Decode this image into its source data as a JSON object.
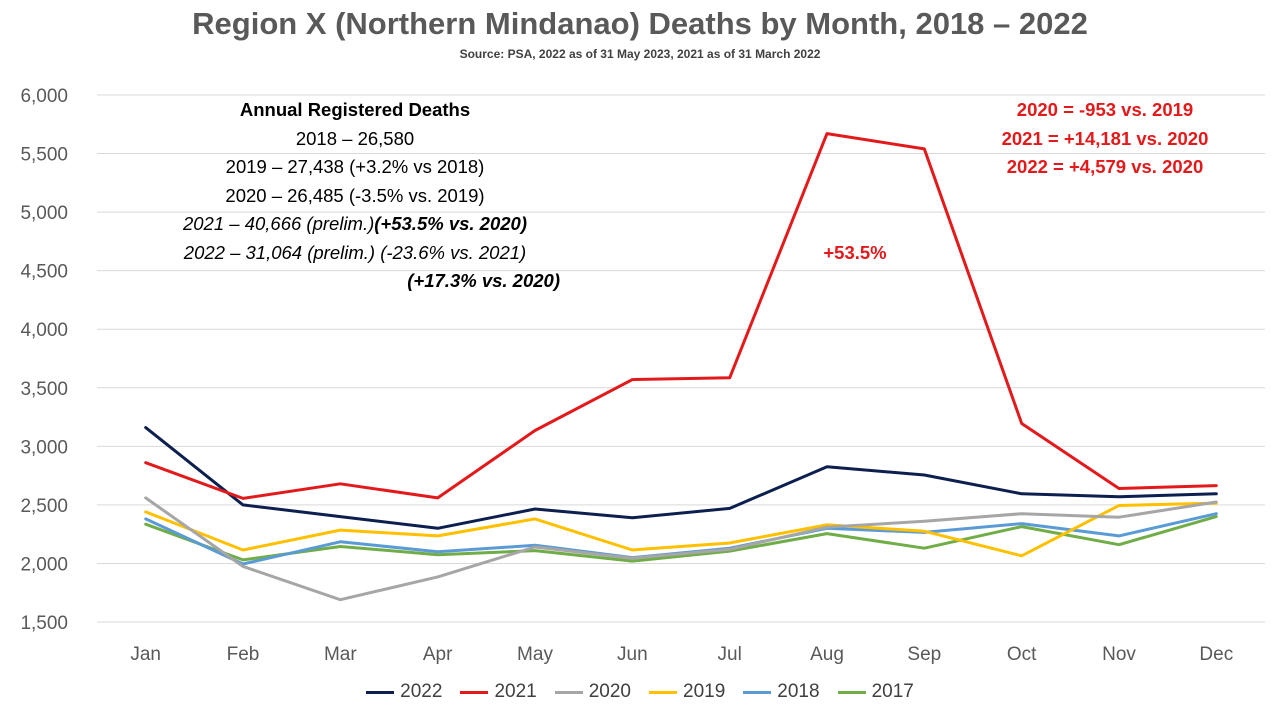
{
  "title": "Region X (Northern Mindanao) Deaths by Month, 2018 – 2022",
  "subtitle": "Source: PSA, 2022 as of 31 May 2023, 2021 as of 31 March 2022",
  "annual_box": {
    "heading": "Annual Registered Deaths",
    "line1": "2018 – 26,580",
    "line2": "2019 – 27,438 (+3.2% vs 2018)",
    "line3": "2020 – 26,485 (-3.5% vs. 2019)",
    "line4a": "2021 – 40,666 (prelim.)",
    "line4b": "(+53.5% vs. 2020)",
    "line5": "2022 – 31,064 (prelim.) (-23.6% vs. 2021)",
    "line6": "(+17.3% vs. 2020)"
  },
  "diff_box": {
    "line1": "2020 = -953 vs. 2019",
    "line2": "2021 = +14,181 vs. 2020",
    "line3": "2022 = +4,579 vs. 2020"
  },
  "peak_annotation": "+53.5%",
  "chart_data": {
    "type": "line",
    "categories": [
      "Jan",
      "Feb",
      "Mar",
      "Apr",
      "May",
      "Jun",
      "Jul",
      "Aug",
      "Sep",
      "Oct",
      "Nov",
      "Dec"
    ],
    "ylim": [
      1500,
      6000
    ],
    "yticks": [
      1500,
      2000,
      2500,
      3000,
      3500,
      4000,
      4500,
      5000,
      5500,
      6000
    ],
    "ytick_labels": [
      "1,500",
      "2,000",
      "2,500",
      "3,000",
      "3,500",
      "4,000",
      "4,500",
      "5,000",
      "5,500",
      "6,000"
    ],
    "grid": true,
    "legend_position": "bottom",
    "series": [
      {
        "name": "2022",
        "color": "#0c1f4f",
        "values": [
          3160,
          2500,
          2400,
          2300,
          2465,
          2390,
          2470,
          2825,
          2755,
          2595,
          2570,
          2595
        ]
      },
      {
        "name": "2021",
        "color": "#e31a1c",
        "values": [
          2860,
          2555,
          2680,
          2560,
          3135,
          3570,
          3585,
          5670,
          5540,
          3195,
          2640,
          2665
        ]
      },
      {
        "name": "2020",
        "color": "#a6a6a6",
        "values": [
          2560,
          1975,
          1690,
          1885,
          2140,
          2045,
          2120,
          2310,
          2360,
          2425,
          2395,
          2525
        ]
      },
      {
        "name": "2019",
        "color": "#ffc000",
        "values": [
          2440,
          2115,
          2285,
          2235,
          2380,
          2115,
          2175,
          2330,
          2275,
          2065,
          2495,
          2515
        ]
      },
      {
        "name": "2018",
        "color": "#5b9bd5",
        "values": [
          2380,
          1995,
          2185,
          2100,
          2155,
          2050,
          2130,
          2300,
          2265,
          2340,
          2235,
          2425
        ]
      },
      {
        "name": "2017",
        "color": "#70ad47",
        "values": [
          2335,
          2030,
          2145,
          2075,
          2110,
          2020,
          2105,
          2255,
          2130,
          2315,
          2160,
          2400
        ]
      }
    ]
  }
}
